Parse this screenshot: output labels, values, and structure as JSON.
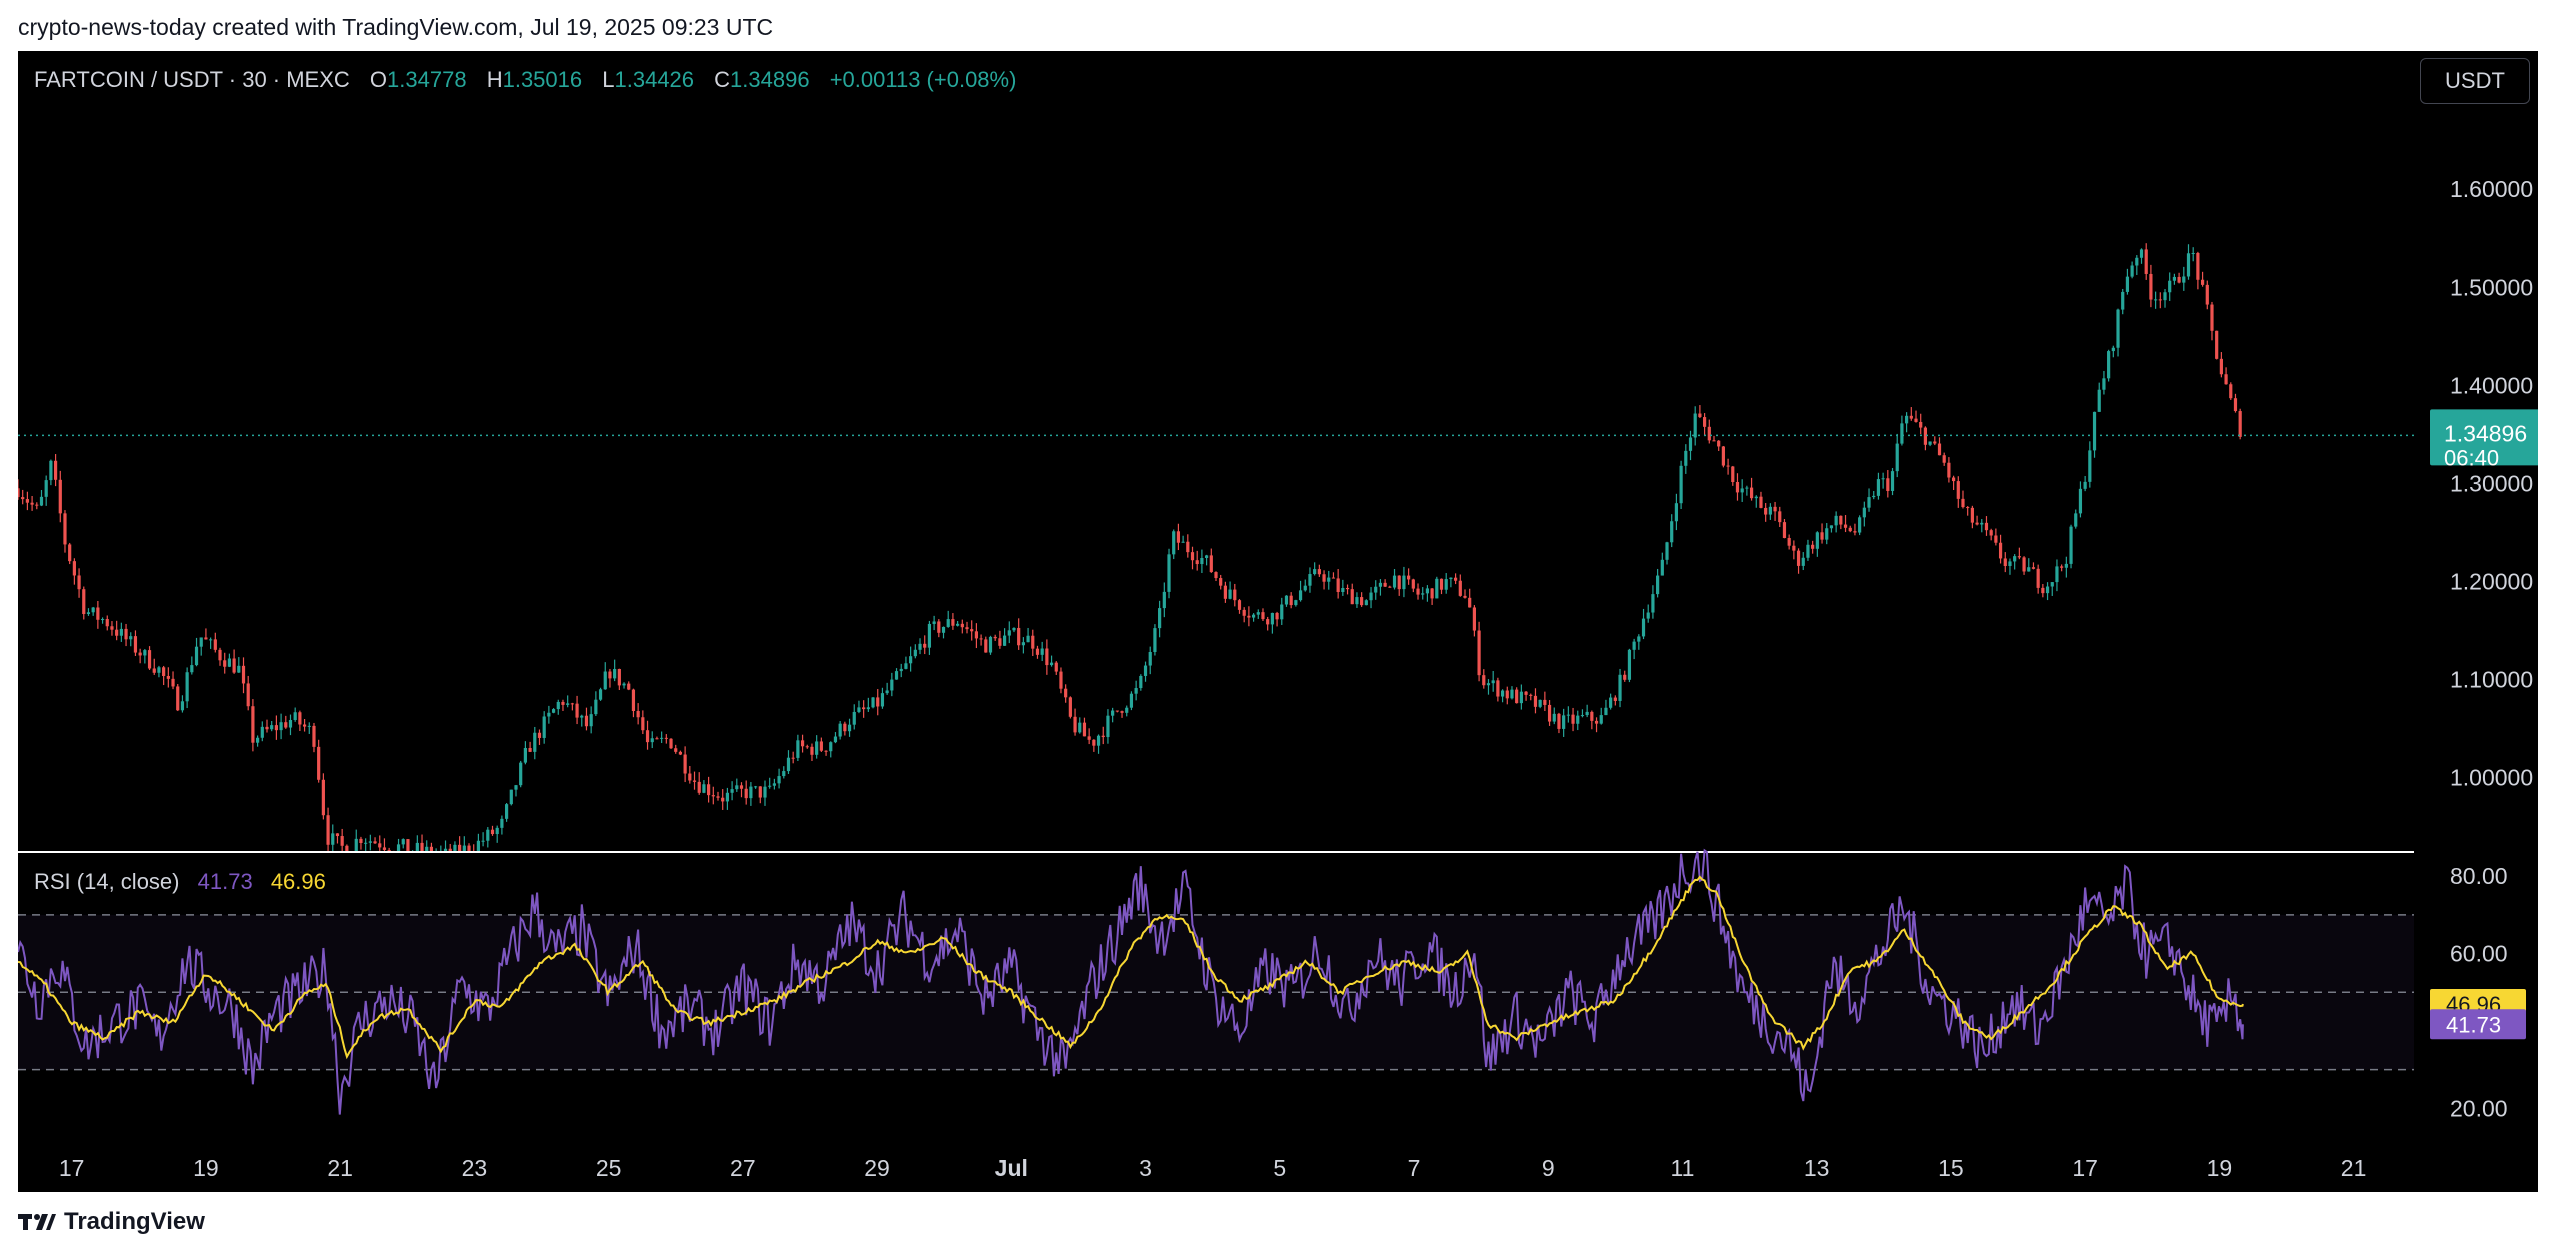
{
  "caption": "crypto-news-today created with TradingView.com, Jul 19, 2025 09:23 UTC",
  "header": {
    "symbol": "FARTCOIN / USDT · 30 · MEXC",
    "open_label": "O",
    "open": "1.34778",
    "high_label": "H",
    "high": "1.35016",
    "low_label": "L",
    "low": "1.34426",
    "close_label": "C",
    "close": "1.34896",
    "change": "+0.00113 (+0.08%)"
  },
  "currency_button": "USDT",
  "rsi_header": {
    "label": "RSI (14, close)",
    "rsi_value": "41.73",
    "ma_value": "46.96"
  },
  "footer": {
    "brand": "TradingView"
  },
  "colors": {
    "up": "#26a69a",
    "down": "#ef5350",
    "rsi": "#7e57c2",
    "rsi_ma": "#f7d733",
    "background": "#000000"
  },
  "chart_data": [
    {
      "type": "candlestick",
      "title": "FARTCOIN / USDT · 30 · MEXC",
      "price_axis_ticks": [
        "1.60000",
        "1.50000",
        "1.40000",
        "1.30000",
        "1.20000",
        "1.10000",
        "1.00000"
      ],
      "price_tick_values": [
        1.6,
        1.5,
        1.4,
        1.3,
        1.2,
        1.1,
        1.0
      ],
      "ylim": [
        0.925,
        1.69
      ],
      "last_price_label": "1.34896",
      "last_price_value": 1.34896,
      "countdown_label": "06:40",
      "x_axis_ticks": [
        "17",
        "19",
        "21",
        "23",
        "25",
        "27",
        "29",
        "Jul",
        "3",
        "5",
        "7",
        "9",
        "11",
        "13",
        "15",
        "17",
        "19",
        "21"
      ],
      "x_tick_days": [
        0,
        2,
        4,
        6,
        8,
        10,
        12,
        14,
        16,
        18,
        20,
        22,
        24,
        26,
        28,
        30,
        32,
        34
      ],
      "x_range_days": [
        -0.8,
        34.9
      ],
      "last_candle_day": 32.35,
      "price_path": [
        [
          -0.8,
          1.295
        ],
        [
          -0.5,
          1.27
        ],
        [
          -0.3,
          1.32
        ],
        [
          -0.1,
          1.24
        ],
        [
          0.2,
          1.17
        ],
        [
          0.5,
          1.16
        ],
        [
          0.9,
          1.135
        ],
        [
          1.3,
          1.11
        ],
        [
          1.6,
          1.075
        ],
        [
          1.9,
          1.145
        ],
        [
          2.2,
          1.125
        ],
        [
          2.5,
          1.11
        ],
        [
          2.7,
          1.04
        ],
        [
          3.0,
          1.05
        ],
        [
          3.3,
          1.06
        ],
        [
          3.6,
          1.045
        ],
        [
          3.8,
          0.94
        ],
        [
          4.1,
          0.925
        ],
        [
          4.3,
          0.94
        ],
        [
          4.5,
          0.935
        ],
        [
          4.8,
          0.93
        ],
        [
          5.2,
          0.925
        ],
        [
          5.6,
          0.92
        ],
        [
          6.0,
          0.93
        ],
        [
          6.4,
          0.95
        ],
        [
          6.8,
          1.03
        ],
        [
          7.3,
          1.08
        ],
        [
          7.7,
          1.05
        ],
        [
          8.0,
          1.11
        ],
        [
          8.3,
          1.09
        ],
        [
          8.6,
          1.03
        ],
        [
          8.9,
          1.04
        ],
        [
          9.3,
          0.995
        ],
        [
          9.7,
          0.98
        ],
        [
          10.0,
          0.985
        ],
        [
          10.4,
          0.985
        ],
        [
          10.8,
          1.03
        ],
        [
          11.2,
          1.03
        ],
        [
          11.6,
          1.06
        ],
        [
          12.0,
          1.075
        ],
        [
          12.4,
          1.11
        ],
        [
          12.8,
          1.15
        ],
        [
          13.2,
          1.16
        ],
        [
          13.6,
          1.135
        ],
        [
          14.0,
          1.145
        ],
        [
          14.3,
          1.14
        ],
        [
          14.6,
          1.115
        ],
        [
          14.9,
          1.055
        ],
        [
          15.2,
          1.035
        ],
        [
          15.6,
          1.07
        ],
        [
          15.9,
          1.09
        ],
        [
          16.2,
          1.16
        ],
        [
          16.4,
          1.245
        ],
        [
          16.7,
          1.23
        ],
        [
          16.9,
          1.22
        ],
        [
          17.2,
          1.19
        ],
        [
          17.6,
          1.165
        ],
        [
          17.9,
          1.165
        ],
        [
          18.3,
          1.19
        ],
        [
          18.6,
          1.21
        ],
        [
          18.9,
          1.19
        ],
        [
          19.3,
          1.18
        ],
        [
          19.7,
          1.205
        ],
        [
          20.1,
          1.185
        ],
        [
          20.5,
          1.2
        ],
        [
          20.8,
          1.185
        ],
        [
          21.0,
          1.1
        ],
        [
          21.4,
          1.085
        ],
        [
          21.8,
          1.075
        ],
        [
          22.2,
          1.055
        ],
        [
          22.5,
          1.06
        ],
        [
          22.8,
          1.06
        ],
        [
          23.1,
          1.1
        ],
        [
          23.4,
          1.16
        ],
        [
          23.7,
          1.215
        ],
        [
          24.0,
          1.32
        ],
        [
          24.2,
          1.37
        ],
        [
          24.5,
          1.34
        ],
        [
          24.8,
          1.3
        ],
        [
          25.1,
          1.28
        ],
        [
          25.4,
          1.265
        ],
        [
          25.7,
          1.22
        ],
        [
          26.0,
          1.245
        ],
        [
          26.3,
          1.26
        ],
        [
          26.6,
          1.25
        ],
        [
          26.9,
          1.3
        ],
        [
          27.1,
          1.3
        ],
        [
          27.3,
          1.37
        ],
        [
          27.6,
          1.35
        ],
        [
          27.9,
          1.32
        ],
        [
          28.2,
          1.27
        ],
        [
          28.5,
          1.25
        ],
        [
          28.8,
          1.22
        ],
        [
          29.1,
          1.215
        ],
        [
          29.4,
          1.195
        ],
        [
          29.7,
          1.22
        ],
        [
          30.0,
          1.31
        ],
        [
          30.2,
          1.39
        ],
        [
          30.4,
          1.44
        ],
        [
          30.6,
          1.51
        ],
        [
          30.8,
          1.54
        ],
        [
          31.0,
          1.49
        ],
        [
          31.3,
          1.5
        ],
        [
          31.6,
          1.535
        ],
        [
          31.8,
          1.48
        ],
        [
          32.0,
          1.42
        ],
        [
          32.2,
          1.375
        ],
        [
          32.35,
          1.349
        ]
      ]
    },
    {
      "type": "line",
      "title": "RSI (14, close)",
      "rsi_axis_ticks": [
        "80.00",
        "60.00",
        "20.00"
      ],
      "rsi_tick_values": [
        80,
        60,
        20
      ],
      "ylim": [
        10,
        86
      ],
      "band": [
        30,
        70
      ],
      "midline": 50,
      "last_rsi_label": "41.73",
      "last_rsi": 41.73,
      "last_ma_label": "46.96",
      "last_ma": 46.96,
      "ma_path": [
        [
          -0.8,
          58
        ],
        [
          -0.4,
          52
        ],
        [
          0.0,
          42
        ],
        [
          0.5,
          38
        ],
        [
          1.0,
          45
        ],
        [
          1.5,
          42
        ],
        [
          2.0,
          55
        ],
        [
          2.5,
          48
        ],
        [
          3.0,
          40
        ],
        [
          3.5,
          50
        ],
        [
          3.8,
          52
        ],
        [
          4.1,
          34
        ],
        [
          4.5,
          43
        ],
        [
          5.0,
          46
        ],
        [
          5.5,
          35
        ],
        [
          6.0,
          48
        ],
        [
          6.4,
          46
        ],
        [
          7.0,
          58
        ],
        [
          7.5,
          62
        ],
        [
          8.0,
          50
        ],
        [
          8.5,
          58
        ],
        [
          9.0,
          45
        ],
        [
          9.5,
          42
        ],
        [
          10.0,
          45
        ],
        [
          10.5,
          48
        ],
        [
          11.0,
          53
        ],
        [
          11.5,
          57
        ],
        [
          12.0,
          63
        ],
        [
          12.5,
          60
        ],
        [
          13.0,
          64
        ],
        [
          13.5,
          55
        ],
        [
          14.0,
          50
        ],
        [
          14.5,
          42
        ],
        [
          14.9,
          36
        ],
        [
          15.3,
          45
        ],
        [
          15.8,
          62
        ],
        [
          16.2,
          70
        ],
        [
          16.6,
          68
        ],
        [
          17.0,
          55
        ],
        [
          17.4,
          48
        ],
        [
          17.9,
          52
        ],
        [
          18.4,
          58
        ],
        [
          18.9,
          50
        ],
        [
          19.4,
          55
        ],
        [
          19.9,
          58
        ],
        [
          20.4,
          55
        ],
        [
          20.8,
          60
        ],
        [
          21.1,
          42
        ],
        [
          21.5,
          38
        ],
        [
          22.0,
          42
        ],
        [
          22.5,
          45
        ],
        [
          23.0,
          48
        ],
        [
          23.5,
          60
        ],
        [
          24.0,
          74
        ],
        [
          24.2,
          80
        ],
        [
          24.5,
          76
        ],
        [
          24.9,
          58
        ],
        [
          25.3,
          44
        ],
        [
          25.8,
          36
        ],
        [
          26.1,
          42
        ],
        [
          26.5,
          56
        ],
        [
          26.9,
          58
        ],
        [
          27.3,
          66
        ],
        [
          27.7,
          56
        ],
        [
          28.2,
          42
        ],
        [
          28.6,
          38
        ],
        [
          29.0,
          44
        ],
        [
          29.5,
          52
        ],
        [
          30.0,
          64
        ],
        [
          30.4,
          72
        ],
        [
          30.8,
          68
        ],
        [
          31.2,
          56
        ],
        [
          31.6,
          60
        ],
        [
          32.0,
          48
        ],
        [
          32.35,
          46.96
        ]
      ],
      "rsi_path": [
        [
          -0.8,
          62
        ],
        [
          -0.5,
          48
        ],
        [
          -0.2,
          58
        ],
        [
          0.2,
          36
        ],
        [
          0.6,
          42
        ],
        [
          1.0,
          46
        ],
        [
          1.3,
          38
        ],
        [
          1.7,
          58
        ],
        [
          2.1,
          50
        ],
        [
          2.4,
          46
        ],
        [
          2.7,
          30
        ],
        [
          3.0,
          44
        ],
        [
          3.4,
          50
        ],
        [
          3.8,
          56
        ],
        [
          4.0,
          24
        ],
        [
          4.3,
          42
        ],
        [
          4.7,
          48
        ],
        [
          5.1,
          42
        ],
        [
          5.4,
          25
        ],
        [
          5.8,
          52
        ],
        [
          6.2,
          45
        ],
        [
          6.5,
          58
        ],
        [
          6.9,
          72
        ],
        [
          7.2,
          60
        ],
        [
          7.6,
          66
        ],
        [
          8.0,
          48
        ],
        [
          8.4,
          62
        ],
        [
          8.8,
          40
        ],
        [
          9.2,
          46
        ],
        [
          9.6,
          40
        ],
        [
          10.0,
          52
        ],
        [
          10.4,
          42
        ],
        [
          10.8,
          58
        ],
        [
          11.2,
          52
        ],
        [
          11.6,
          68
        ],
        [
          12.0,
          56
        ],
        [
          12.4,
          70
        ],
        [
          12.8,
          58
        ],
        [
          13.2,
          66
        ],
        [
          13.6,
          48
        ],
        [
          14.0,
          56
        ],
        [
          14.4,
          40
        ],
        [
          14.8,
          30
        ],
        [
          15.2,
          52
        ],
        [
          15.6,
          66
        ],
        [
          15.9,
          78
        ],
        [
          16.2,
          64
        ],
        [
          16.6,
          76
        ],
        [
          17.0,
          50
        ],
        [
          17.4,
          40
        ],
        [
          17.8,
          56
        ],
        [
          18.2,
          50
        ],
        [
          18.6,
          62
        ],
        [
          19.0,
          44
        ],
        [
          19.4,
          60
        ],
        [
          19.8,
          52
        ],
        [
          20.2,
          62
        ],
        [
          20.6,
          50
        ],
        [
          20.9,
          62
        ],
        [
          21.1,
          32
        ],
        [
          21.5,
          44
        ],
        [
          21.9,
          36
        ],
        [
          22.3,
          50
        ],
        [
          22.7,
          42
        ],
        [
          23.1,
          60
        ],
        [
          23.5,
          66
        ],
        [
          23.8,
          74
        ],
        [
          24.0,
          82
        ],
        [
          24.3,
          84
        ],
        [
          24.6,
          68
        ],
        [
          24.9,
          50
        ],
        [
          25.2,
          44
        ],
        [
          25.6,
          36
        ],
        [
          25.9,
          22
        ],
        [
          26.2,
          56
        ],
        [
          26.6,
          48
        ],
        [
          27.0,
          62
        ],
        [
          27.3,
          72
        ],
        [
          27.7,
          50
        ],
        [
          28.1,
          44
        ],
        [
          28.5,
          34
        ],
        [
          28.9,
          48
        ],
        [
          29.3,
          40
        ],
        [
          29.7,
          56
        ],
        [
          30.0,
          72
        ],
        [
          30.4,
          68
        ],
        [
          30.6,
          78
        ],
        [
          30.9,
          60
        ],
        [
          31.3,
          62
        ],
        [
          31.7,
          44
        ],
        [
          32.0,
          40
        ],
        [
          32.2,
          50
        ],
        [
          32.35,
          41.73
        ]
      ]
    }
  ]
}
